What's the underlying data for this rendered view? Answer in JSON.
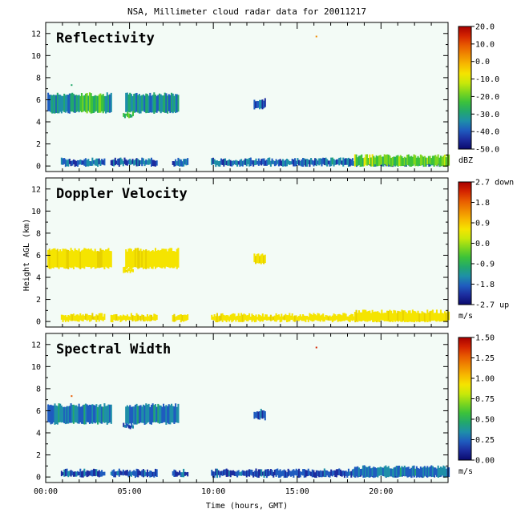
{
  "title": "NSA, Millimeter cloud radar data for 20011217",
  "xlabel": "Time (hours, GMT)",
  "ylabel": "Height AGL (km)",
  "x_ticks": [
    "00:00",
    "05:00",
    "10:00",
    "15:00",
    "20:00"
  ],
  "x_tick_values": [
    0,
    5,
    10,
    15,
    20
  ],
  "xlim": [
    0,
    24
  ],
  "y_ticks": [
    "0",
    "2",
    "4",
    "6",
    "8",
    "10",
    "12"
  ],
  "y_tick_values": [
    0,
    2,
    4,
    6,
    8,
    10,
    12
  ],
  "ylim": [
    -0.5,
    13
  ],
  "colormap": [
    "#0a0a6e",
    "#1c2c9e",
    "#1f5cbf",
    "#1e8fa8",
    "#22a86c",
    "#3cc23a",
    "#7ed61e",
    "#c8e80a",
    "#f5e400",
    "#f7b800",
    "#f08a00",
    "#e85a00",
    "#d42400",
    "#a80000"
  ],
  "panels": [
    {
      "title": "Reflectivity",
      "colorbar_ticks": [
        "20.0",
        "10.0",
        "0.0",
        "-10.0",
        "-20.0",
        "-30.0",
        "-40.0",
        "-50.0"
      ],
      "colorbar_unit": "dBZ",
      "clim": [
        -50,
        20
      ]
    },
    {
      "title": "Doppler Velocity",
      "colorbar_ticks": [
        "2.7 down",
        "1.8",
        "0.9",
        "0.0",
        "-0.9",
        "-1.8",
        "-2.7 up"
      ],
      "colorbar_unit": "m/s",
      "clim": [
        -2.7,
        2.7
      ]
    },
    {
      "title": "Spectral Width",
      "colorbar_ticks": [
        "1.50",
        "1.25",
        "1.00",
        "0.75",
        "0.50",
        "0.25",
        "0.00"
      ],
      "colorbar_unit": "m/s",
      "clim": [
        0,
        1.5
      ]
    }
  ],
  "chart_data": {
    "type": "heatmap",
    "xlim": [
      0,
      24
    ],
    "ylim": [
      -0.5,
      13
    ],
    "layers": [
      {
        "name": "upper cloud",
        "x_start": 0.1,
        "x_end": 7.9,
        "y_bottom": 4.8,
        "y_top": 6.5,
        "gaps": [
          [
            3.9,
            4.7
          ]
        ],
        "dbz": -33,
        "velocity": 0.2,
        "width": 0.3
      },
      {
        "name": "mid cloud",
        "x_start": 4.6,
        "x_end": 5.2,
        "y_bottom": 4.4,
        "y_top": 4.8,
        "dbz": -25,
        "velocity": 0.1,
        "width": 0.25
      },
      {
        "name": "small echo",
        "x_start": 12.4,
        "x_end": 13.1,
        "y_bottom": 5.2,
        "y_top": 6.0,
        "dbz": -40,
        "velocity": 0.1,
        "width": 0.2
      },
      {
        "name": "low cloud",
        "x_start": 0.9,
        "x_end": 24.0,
        "y_bottom": 0.0,
        "y_top": 0.6,
        "gaps": [
          [
            3.5,
            3.8
          ],
          [
            6.6,
            7.5
          ],
          [
            8.5,
            9.8
          ]
        ],
        "dbz": -38,
        "velocity": 0.3,
        "width": 0.2
      },
      {
        "name": "low cloud enhanced",
        "x_start": 18.4,
        "x_end": 24.0,
        "y_bottom": 0.0,
        "y_top": 0.9,
        "dbz": -25,
        "velocity": 0.3,
        "width": 0.3
      }
    ],
    "points": [
      {
        "x": 16.1,
        "y": 11.8,
        "dbz": 5,
        "width": 1.4
      },
      {
        "x": 1.5,
        "y": 7.4,
        "dbz": -30,
        "width": 1.3
      }
    ]
  }
}
